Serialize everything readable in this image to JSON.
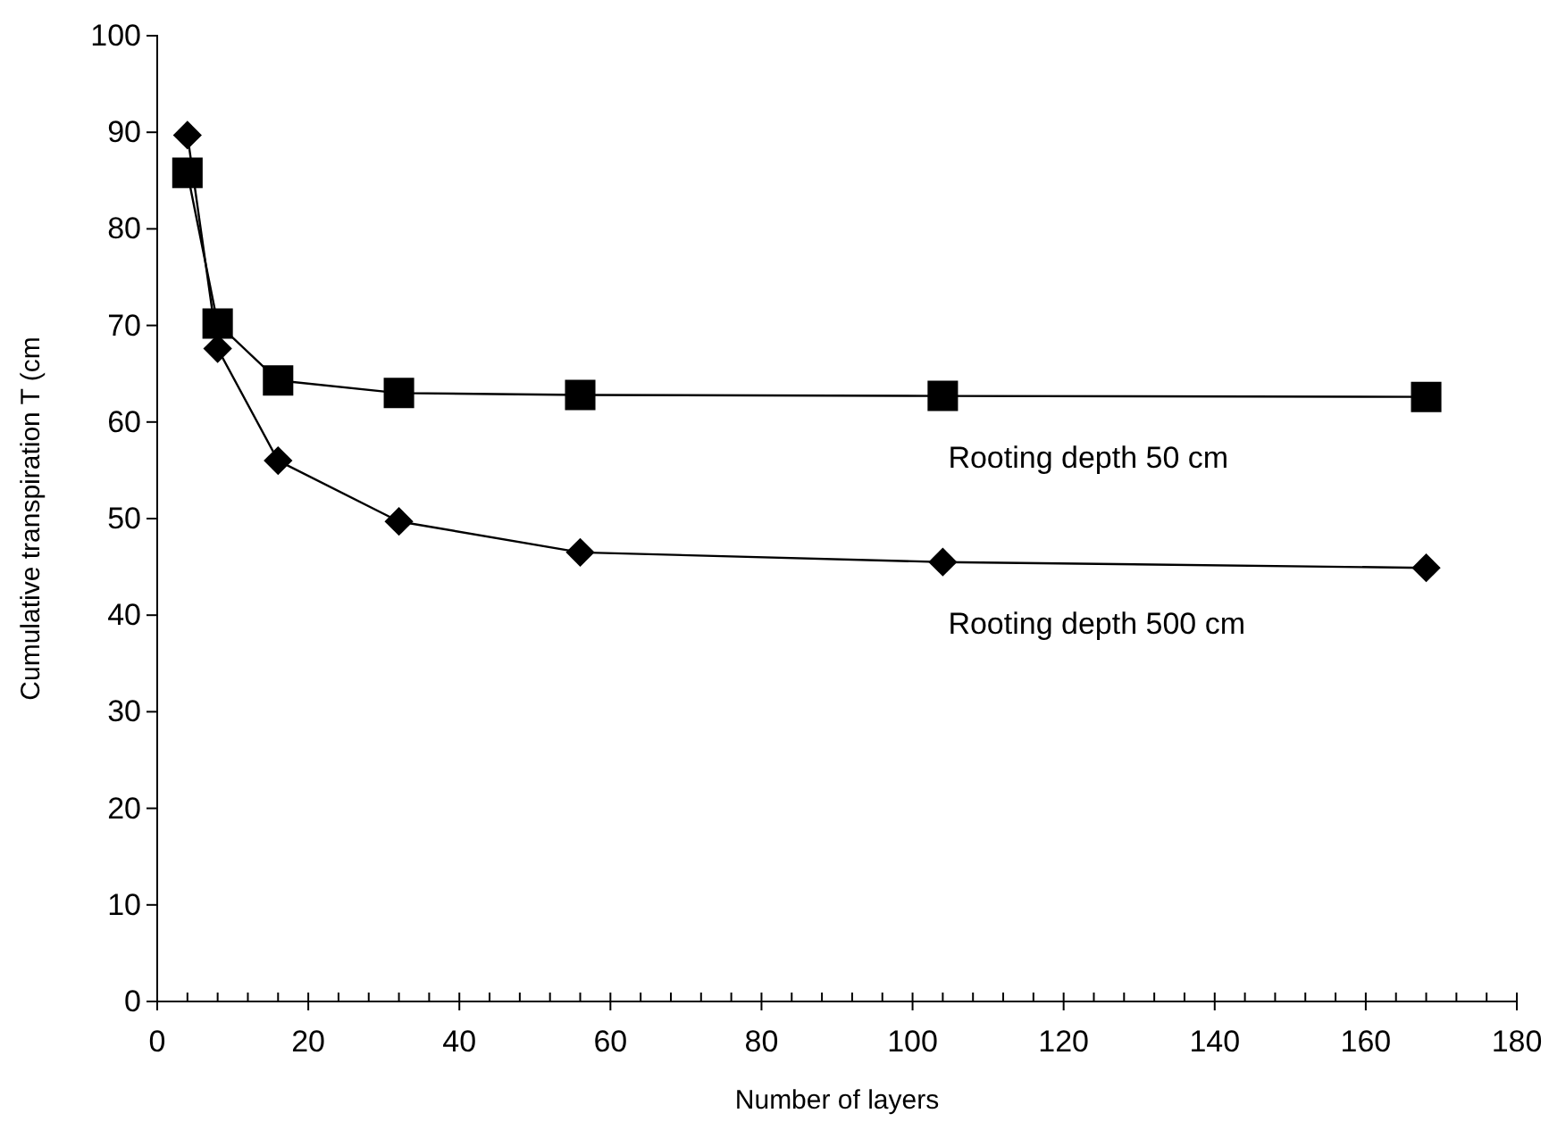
{
  "chart_data": {
    "type": "line",
    "xlabel": "Number of layers",
    "ylabel": "Cumulative transpiration T (cm",
    "x": [
      4,
      8,
      16,
      32,
      56,
      104,
      168
    ],
    "series": [
      {
        "name": "Rooting depth 50 cm",
        "color": "#000000",
        "marker": "square",
        "values": [
          85.8,
          70.2,
          64.3,
          63.0,
          62.8,
          62.7,
          62.6
        ]
      },
      {
        "name": "Rooting depth 500 cm",
        "color": "#000000",
        "marker": "diamond",
        "values": [
          89.7,
          67.6,
          56.0,
          49.7,
          46.5,
          45.5,
          44.9
        ]
      }
    ],
    "xlim": [
      0,
      180
    ],
    "xticks": [
      0,
      {
        "value": 4,
        "label": null
      },
      {
        "value": 8,
        "label": null
      },
      {
        "value": 12,
        "label": null
      },
      {
        "value": 16,
        "label": null
      },
      20,
      {
        "value": 24,
        "label": null
      },
      {
        "value": 28,
        "label": null
      },
      {
        "value": 32,
        "label": null
      },
      {
        "value": 36,
        "label": null
      },
      40,
      {
        "value": 44,
        "label": null
      },
      {
        "value": 48,
        "label": null
      },
      {
        "value": 52,
        "label": null
      },
      {
        "value": 56,
        "label": null
      },
      60,
      {
        "value": 64,
        "label": null
      },
      {
        "value": 68,
        "label": null
      },
      {
        "value": 72,
        "label": null
      },
      {
        "value": 76,
        "label": null
      },
      80,
      {
        "value": 84,
        "label": null
      },
      {
        "value": 88,
        "label": null
      },
      {
        "value": 92,
        "label": null
      },
      {
        "value": 96,
        "label": null
      },
      100,
      {
        "value": 104,
        "label": null
      },
      {
        "value": 108,
        "label": null
      },
      {
        "value": 112,
        "label": null
      },
      {
        "value": 116,
        "label": null
      },
      120,
      {
        "value": 124,
        "label": null
      },
      {
        "value": 128,
        "label": null
      },
      {
        "value": 132,
        "label": null
      },
      {
        "value": 136,
        "label": null
      },
      140,
      {
        "value": 144,
        "label": null
      },
      {
        "value": 148,
        "label": null
      },
      {
        "value": 152,
        "label": null
      },
      {
        "value": 156,
        "label": null
      },
      160,
      {
        "value": 164,
        "label": null
      },
      {
        "value": 168,
        "label": null
      },
      {
        "value": 172,
        "label": null
      },
      {
        "value": 176,
        "label": null
      },
      180
    ],
    "ylim": [
      0,
      100
    ],
    "yticks": [
      0,
      10,
      20,
      30,
      40,
      50,
      60,
      70,
      80,
      90,
      100
    ],
    "grid": false
  }
}
